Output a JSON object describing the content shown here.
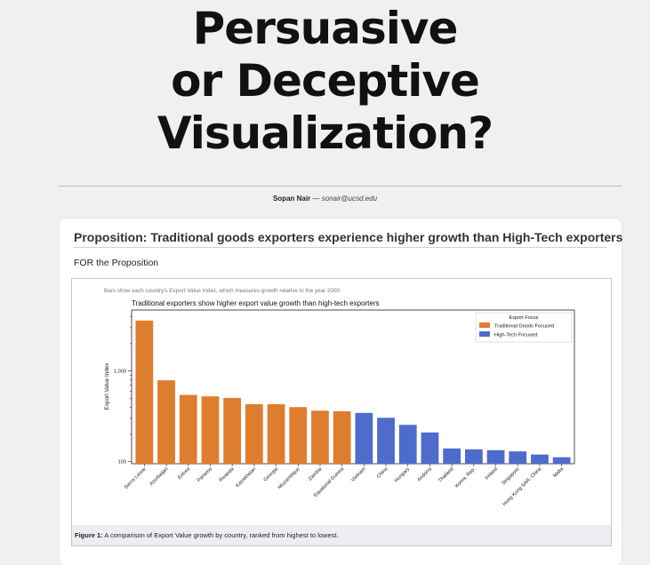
{
  "page": {
    "title_lines": [
      "Persuasive",
      "or Deceptive",
      "Visualization?"
    ],
    "author": "Sopan Nair",
    "separator": " — ",
    "email": "sonair@ucsd.edu"
  },
  "card": {
    "proposition": "Proposition: Traditional goods exporters experience higher growth than High-Tech exporters",
    "stance": "FOR the Proposition",
    "caption_label": "Figure 1:",
    "caption_text": " A comparison of Export Value growth by country, ranked from highest to lowest."
  },
  "colors": {
    "traditional": "#df7d2e",
    "hightech": "#4d6ccb"
  },
  "chart_data": {
    "type": "bar",
    "note": "Bars show each country's Export Value Index, which measures growth relative to the year 2000",
    "title": "Traditional exporters show higher export value growth than high-tech exporters",
    "xlabel": "",
    "ylabel": "Export Value Index",
    "yscale": "log",
    "ylim": [
      95,
      4700
    ],
    "yticks": [
      100,
      1000
    ],
    "ytick_labels": [
      "100",
      "1,000"
    ],
    "legend_title": "Export Focus",
    "legend_position": "top-right",
    "categories": [
      "Sierra Leone",
      "Azerbaijan",
      "Eritrea",
      "Panama",
      "Rwanda",
      "Kazakhstan",
      "Georgia",
      "Mozambique",
      "Zambia",
      "Equatorial Guinea",
      "Vietnam",
      "China",
      "Hungary",
      "Andorra",
      "Thailand",
      "Korea, Rep.",
      "Ireland",
      "Singapore",
      "Hong Kong SAR, China",
      "Malta"
    ],
    "series": [
      {
        "name": "Traditional Goods Focused",
        "color": "#df7d2e",
        "values": [
          3600,
          790,
          545,
          525,
          505,
          430,
          430,
          400,
          365,
          360,
          null,
          null,
          null,
          null,
          null,
          null,
          null,
          null,
          null,
          null
        ]
      },
      {
        "name": "High-Tech Focused",
        "color": "#4d6ccb",
        "values": [
          null,
          null,
          null,
          null,
          null,
          null,
          null,
          null,
          null,
          null,
          345,
          305,
          255,
          210,
          140,
          137,
          134,
          130,
          120,
          112
        ]
      }
    ]
  }
}
